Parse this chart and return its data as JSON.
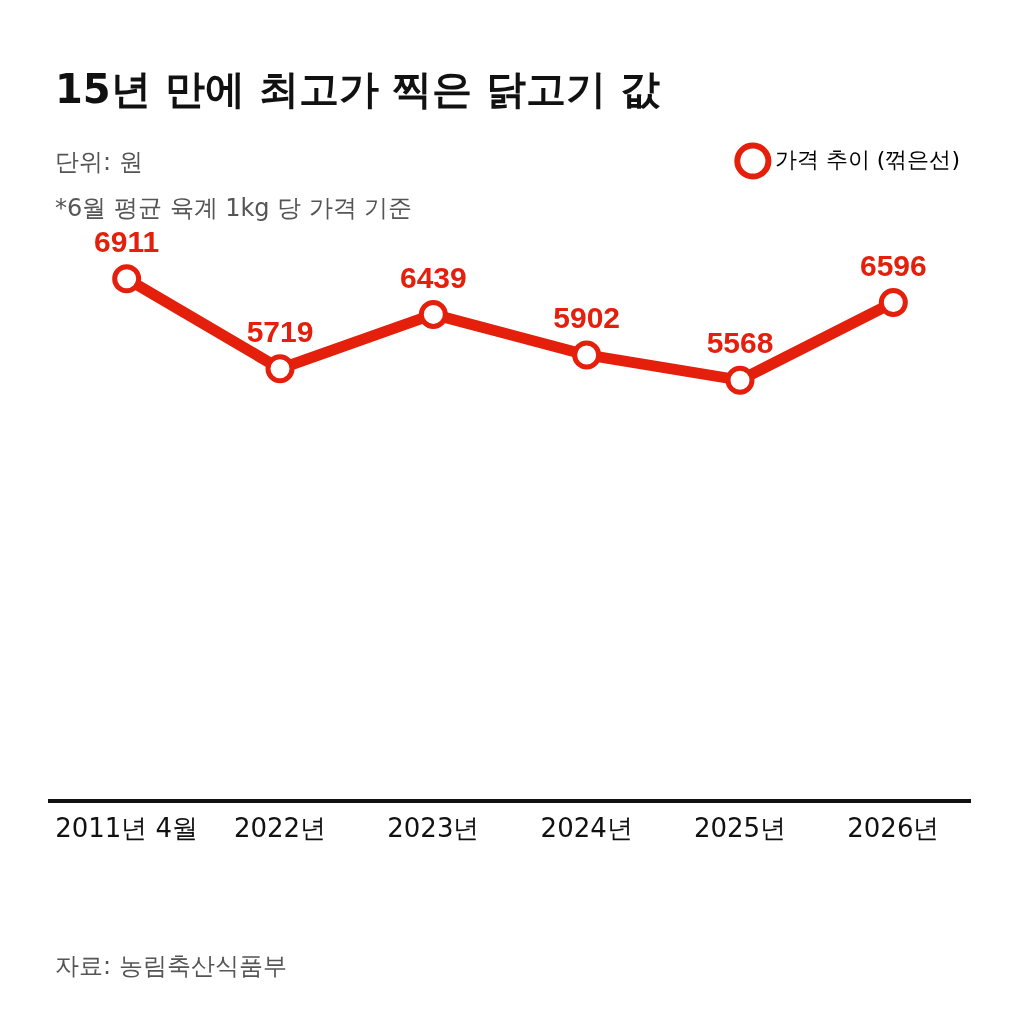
{
  "chart_data": {
    "type": "line",
    "title": "15년 만에 최고가 찍은 닭고기 값",
    "subtitle": "단위: 원",
    "annotations": [
      "*6월 평균 육계 1kg 당 가격 기준",
      "자료: 농림축산식품부"
    ],
    "categories": [
      "2011년 4월",
      "2022년",
      "2023년",
      "2024년",
      "2025년",
      "2026년"
    ],
    "series": [
      {
        "name": "가격 추이 (꺾은선)",
        "color": "#e4200c",
        "values": [
          6911,
          5719,
          6439,
          5902,
          5568,
          6596
        ]
      }
    ],
    "tick_labels": "x",
    "grid": false,
    "legend": "top right",
    "marker": "circle",
    "line_style": "solid",
    "data_labels": true
  }
}
